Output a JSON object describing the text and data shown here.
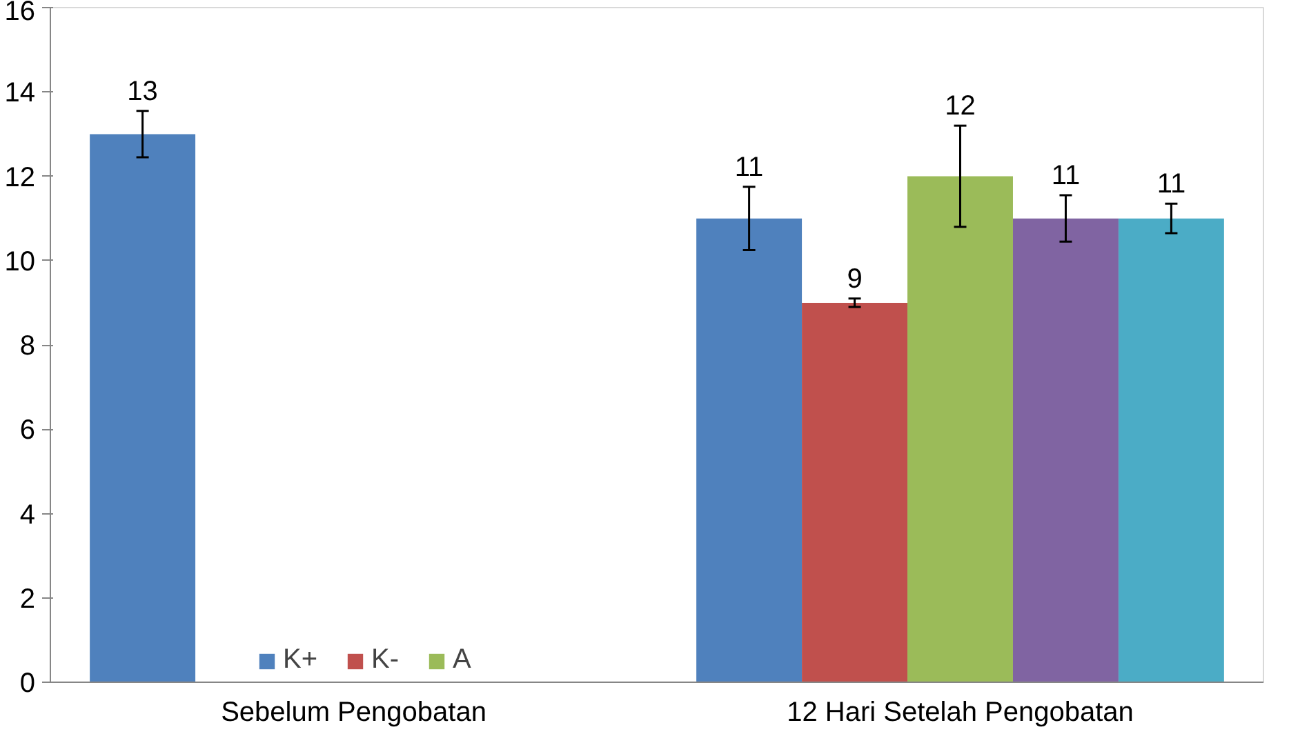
{
  "chart_data": {
    "type": "bar",
    "categories": [
      "Sebelum Pengobatan",
      "12 Hari Setelah Pengobatan"
    ],
    "series": [
      {
        "name": "K+",
        "color": "#4f81bd",
        "values": [
          13,
          11
        ],
        "errors": [
          0.55,
          0.75
        ]
      },
      {
        "name": "K-",
        "color": "#c0504d",
        "values": [
          null,
          9
        ],
        "errors": [
          null,
          0.1
        ]
      },
      {
        "name": "A",
        "color": "#9bbb59",
        "values": [
          null,
          12
        ],
        "errors": [
          null,
          1.2
        ]
      },
      {
        "color": "#8064a2",
        "values": [
          null,
          11
        ],
        "errors": [
          null,
          0.55
        ]
      },
      {
        "color": "#4bacc6",
        "values": [
          null,
          11
        ],
        "errors": [
          null,
          0.35
        ]
      }
    ],
    "ylim": [
      0,
      16
    ],
    "yticks": [
      0,
      2,
      4,
      6,
      8,
      10,
      12,
      14,
      16
    ],
    "grid": false,
    "legend": "bottom",
    "data_labels": true
  }
}
